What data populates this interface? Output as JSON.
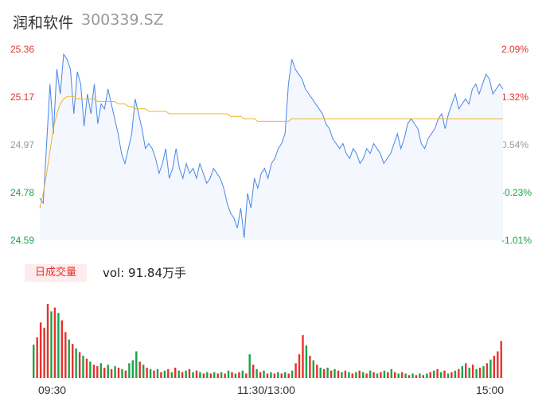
{
  "header": {
    "name": "润和软件",
    "code": "300339.SZ"
  },
  "volume": {
    "tab_label": "日成交量",
    "vol_text": "vol: 91.84万手"
  },
  "colors": {
    "price_line": "#4a86e8",
    "avg_line": "#f0b429",
    "up": "#e8302b",
    "down": "#1aa34a",
    "neutral": "#999999"
  },
  "chart_data": [
    {
      "type": "line",
      "ylim": [
        24.59,
        25.36
      ],
      "y_ticks": [
        {
          "price": "25.36",
          "pct": "2.09%",
          "dir": "up"
        },
        {
          "price": "25.17",
          "pct": "1.32%",
          "dir": "up"
        },
        {
          "price": "24.97",
          "pct": "0.54%",
          "dir": "neutral"
        },
        {
          "price": "24.78",
          "pct": "-0.23%",
          "dir": "down"
        },
        {
          "price": "24.59",
          "pct": "-1.01%",
          "dir": "down"
        }
      ],
      "x_ticks": [
        "09:30",
        "11:30/13:00",
        "15:00"
      ],
      "series": [
        {
          "values": [
            24.76,
            24.74,
            24.98,
            25.22,
            25.02,
            25.28,
            25.18,
            25.34,
            25.32,
            25.28,
            25.1,
            25.27,
            25.22,
            25.05,
            25.18,
            25.1,
            25.22,
            25.06,
            25.14,
            25.12,
            25.2,
            25.14,
            25.08,
            25.02,
            24.94,
            24.9,
            24.96,
            25.02,
            25.16,
            25.1,
            25.04,
            24.96,
            24.98,
            24.96,
            24.92,
            24.86,
            24.9,
            24.96,
            24.84,
            24.88,
            24.96,
            24.88,
            24.84,
            24.9,
            24.86,
            24.88,
            24.84,
            24.9,
            24.86,
            24.82,
            24.84,
            24.88,
            24.86,
            24.84,
            24.8,
            24.74,
            24.7,
            24.68,
            24.64,
            24.72,
            24.6,
            24.78,
            24.72,
            24.84,
            24.8,
            24.86,
            24.88,
            24.84,
            24.9,
            24.92,
            24.96,
            24.98,
            25.02,
            25.22,
            25.32,
            25.28,
            25.26,
            25.24,
            25.2,
            25.18,
            25.16,
            25.14,
            25.12,
            25.1,
            25.06,
            25.04,
            25.0,
            24.98,
            24.96,
            24.98,
            24.94,
            24.92,
            24.96,
            24.94,
            24.9,
            24.92,
            24.96,
            24.94,
            24.98,
            24.96,
            24.94,
            24.9,
            24.92,
            24.94,
            24.98,
            25.02,
            24.96,
            25.0,
            25.06,
            25.08,
            25.06,
            25.04,
            24.98,
            24.96,
            25.0,
            25.02,
            25.04,
            25.08,
            25.1,
            25.04,
            25.1,
            25.14,
            25.18,
            25.12,
            25.14,
            25.16,
            25.14,
            25.2,
            25.22,
            25.18,
            25.22,
            25.26,
            25.24,
            25.18,
            25.2,
            25.22,
            25.2
          ]
        },
        {
          "values": [
            24.72,
            24.78,
            24.86,
            24.95,
            25.04,
            25.1,
            25.14,
            25.16,
            25.17,
            25.17,
            25.17,
            25.16,
            25.16,
            25.16,
            25.16,
            25.16,
            25.16,
            25.15,
            25.15,
            25.15,
            25.15,
            25.15,
            25.15,
            25.14,
            25.14,
            25.14,
            25.13,
            25.13,
            25.12,
            25.12,
            25.12,
            25.12,
            25.11,
            25.11,
            25.11,
            25.11,
            25.11,
            25.11,
            25.1,
            25.1,
            25.1,
            25.1,
            25.1,
            25.1,
            25.1,
            25.1,
            25.1,
            25.1,
            25.1,
            25.1,
            25.1,
            25.1,
            25.1,
            25.1,
            25.1,
            25.1,
            25.09,
            25.09,
            25.09,
            25.09,
            25.08,
            25.08,
            25.08,
            25.08,
            25.07,
            25.07,
            25.07,
            25.07,
            25.07,
            25.07,
            25.07,
            25.07,
            25.07,
            25.07,
            25.08,
            25.08,
            25.08,
            25.08,
            25.08,
            25.08,
            25.08,
            25.08,
            25.08,
            25.08,
            25.08,
            25.08,
            25.08,
            25.08,
            25.08,
            25.08,
            25.08,
            25.08,
            25.08,
            25.08,
            25.08,
            25.08,
            25.08,
            25.08,
            25.08,
            25.08,
            25.08,
            25.08,
            25.08,
            25.08,
            25.08,
            25.08,
            25.08,
            25.08,
            25.08,
            25.08,
            25.08,
            25.08,
            25.08,
            25.08,
            25.08,
            25.08,
            25.08,
            25.08,
            25.08,
            25.08,
            25.08,
            25.08,
            25.08,
            25.08,
            25.08,
            25.08,
            25.08,
            25.08,
            25.08,
            25.08,
            25.08,
            25.08,
            25.08,
            25.08,
            25.08,
            25.08,
            25.08
          ]
        }
      ]
    },
    {
      "type": "bar",
      "volumes": [
        0.45,
        0.55,
        0.75,
        0.68,
        1.0,
        0.9,
        0.95,
        0.88,
        0.78,
        0.62,
        0.52,
        0.46,
        0.4,
        0.35,
        0.3,
        0.26,
        0.22,
        0.18,
        0.16,
        0.2,
        0.14,
        0.18,
        0.12,
        0.16,
        0.14,
        0.12,
        0.1,
        0.2,
        0.24,
        0.36,
        0.22,
        0.18,
        0.14,
        0.12,
        0.1,
        0.12,
        0.08,
        0.1,
        0.12,
        0.08,
        0.14,
        0.1,
        0.08,
        0.1,
        0.12,
        0.08,
        0.1,
        0.08,
        0.06,
        0.08,
        0.06,
        0.08,
        0.06,
        0.08,
        0.06,
        0.1,
        0.08,
        0.06,
        0.08,
        0.1,
        0.06,
        0.32,
        0.18,
        0.12,
        0.08,
        0.1,
        0.06,
        0.08,
        0.06,
        0.08,
        0.06,
        0.08,
        0.06,
        0.1,
        0.2,
        0.32,
        0.58,
        0.44,
        0.3,
        0.24,
        0.18,
        0.14,
        0.12,
        0.14,
        0.1,
        0.12,
        0.1,
        0.08,
        0.1,
        0.08,
        0.06,
        0.08,
        0.1,
        0.08,
        0.06,
        0.1,
        0.08,
        0.06,
        0.08,
        0.1,
        0.08,
        0.12,
        0.08,
        0.06,
        0.08,
        0.06,
        0.04,
        0.06,
        0.04,
        0.06,
        0.04,
        0.06,
        0.08,
        0.1,
        0.12,
        0.08,
        0.1,
        0.06,
        0.08,
        0.1,
        0.12,
        0.16,
        0.2,
        0.14,
        0.18,
        0.12,
        0.14,
        0.16,
        0.2,
        0.25,
        0.3,
        0.36,
        0.5
      ],
      "directions": [
        "d",
        "u",
        "u",
        "u",
        "u",
        "d",
        "u",
        "d",
        "u",
        "u",
        "d",
        "u",
        "d",
        "u",
        "d",
        "u",
        "d",
        "u",
        "u",
        "d",
        "u",
        "d",
        "u",
        "d",
        "u",
        "d",
        "u",
        "d",
        "d",
        "d",
        "u",
        "d",
        "u",
        "d",
        "u",
        "d",
        "u",
        "d",
        "u",
        "d",
        "u",
        "d",
        "u",
        "d",
        "u",
        "d",
        "u",
        "d",
        "u",
        "d",
        "u",
        "d",
        "u",
        "d",
        "u",
        "d",
        "u",
        "d",
        "u",
        "d",
        "u",
        "d",
        "u",
        "d",
        "u",
        "d",
        "u",
        "d",
        "u",
        "d",
        "u",
        "d",
        "u",
        "d",
        "u",
        "u",
        "u",
        "d",
        "u",
        "d",
        "u",
        "d",
        "u",
        "d",
        "u",
        "d",
        "u",
        "d",
        "u",
        "d",
        "u",
        "d",
        "u",
        "d",
        "u",
        "d",
        "u",
        "d",
        "u",
        "d",
        "u",
        "d",
        "u",
        "d",
        "u",
        "d",
        "u",
        "d",
        "u",
        "d",
        "u",
        "d",
        "u",
        "d",
        "u",
        "d",
        "u",
        "d",
        "u",
        "d",
        "u",
        "d",
        "u",
        "d",
        "u",
        "d",
        "u",
        "d",
        "u",
        "d",
        "u",
        "u",
        "u",
        "u"
      ]
    }
  ]
}
